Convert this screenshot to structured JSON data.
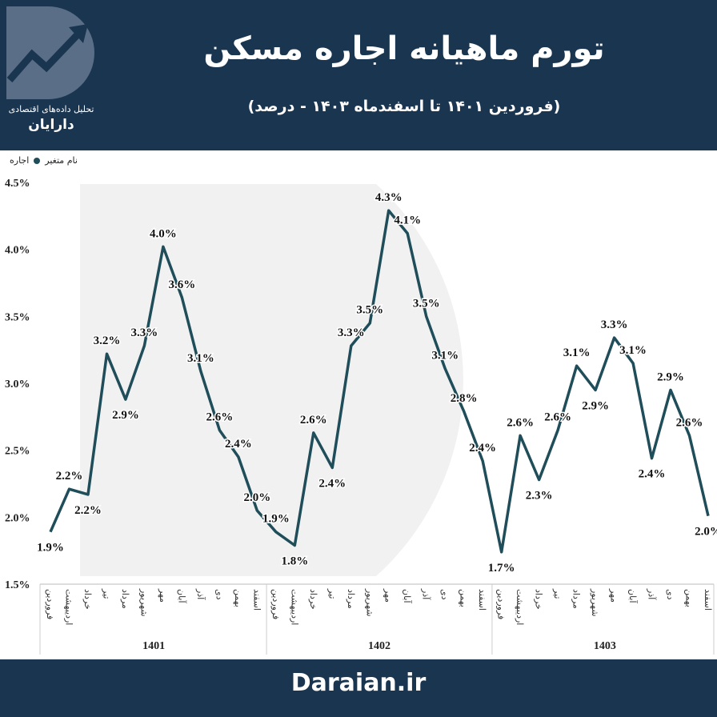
{
  "header": {
    "title": "تورم ماهیانه اجاره مسکن",
    "subtitle": "(فروردین ۱۴۰۱ تا اسفندماه ۱۴۰۳ - درصد)"
  },
  "logo": {
    "line1": "تحلیل داده‌های اقتصادی",
    "line2": "دارایان",
    "icon": "rising-trend-d-logo-icon"
  },
  "legend": {
    "header": "نام متغیر",
    "series_name": "اجاره"
  },
  "footer": {
    "site": "Daraian.ir"
  },
  "colors": {
    "header_bg": "#1a3550",
    "line": "#1f4e5a",
    "watermark": "#eeeeee"
  },
  "chart_data": {
    "type": "line",
    "ylim": [
      1.5,
      4.5
    ],
    "yticks": [
      "1.5%",
      "2.0%",
      "2.5%",
      "3.0%",
      "3.5%",
      "4.0%",
      "4.5%"
    ],
    "ytick_values": [
      1.5,
      2.0,
      2.5,
      3.0,
      3.5,
      4.0,
      4.5
    ],
    "grid": false,
    "legend_position": "top-left",
    "groups": [
      {
        "label": "1401",
        "months": [
          "فروردین",
          "اردیبهشت",
          "خرداد",
          "تیر",
          "مرداد",
          "شهریور",
          "مهر",
          "آبان",
          "آذر",
          "دی",
          "بهمن",
          "اسفند"
        ]
      },
      {
        "label": "1402",
        "months": [
          "فروردین",
          "اردیبهشت",
          "خرداد",
          "تیر",
          "مرداد",
          "شهریور",
          "مهر",
          "آبان",
          "آذر",
          "دی",
          "بهمن",
          "اسفند"
        ]
      },
      {
        "label": "1403",
        "months": [
          "فروردین",
          "اردیبهشت",
          "خرداد",
          "تیر",
          "مرداد",
          "شهریور",
          "مهر",
          "آبان",
          "آذر",
          "دی",
          "بهمن",
          "اسفند"
        ]
      }
    ],
    "series": [
      {
        "name": "اجاره",
        "values": [
          1.89,
          2.21,
          2.17,
          3.22,
          2.88,
          3.28,
          4.02,
          3.64,
          3.09,
          2.65,
          2.45,
          2.05,
          1.89,
          1.79,
          2.63,
          2.37,
          3.28,
          3.45,
          4.29,
          4.12,
          3.5,
          3.11,
          2.79,
          2.42,
          1.74,
          2.61,
          2.28,
          2.65,
          3.13,
          2.95,
          3.34,
          3.15,
          2.44,
          2.95,
          2.61,
          2.01
        ],
        "labels": [
          "1.9%",
          "2.2%",
          "2.2%",
          "3.2%",
          "2.9%",
          "3.3%",
          "4.0%",
          "3.6%",
          "3.1%",
          "2.6%",
          "2.4%",
          "2.0%",
          "1.9%",
          "1.8%",
          "2.6%",
          "2.4%",
          "3.3%",
          "3.5%",
          "4.3%",
          "4.1%",
          "3.5%",
          "3.1%",
          "2.8%",
          "2.4%",
          "1.7%",
          "2.6%",
          "2.3%",
          "2.6%",
          "3.1%",
          "2.9%",
          "3.3%",
          "3.1%",
          "2.4%",
          "2.9%",
          "2.6%",
          "2.0%"
        ]
      }
    ]
  }
}
